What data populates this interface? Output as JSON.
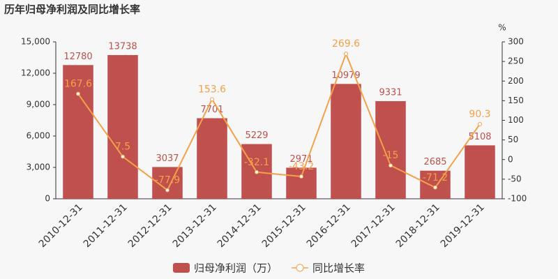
{
  "chart_data": {
    "type": "bar",
    "title": "历年归母净利润及同比增长率",
    "categories": [
      "2010-12-31",
      "2011-12-31",
      "2012-12-31",
      "2013-12-31",
      "2014-12-31",
      "2015-12-31",
      "2016-12-31",
      "2017-12-31",
      "2018-12-31",
      "2019-12-31"
    ],
    "series": [
      {
        "name": "归母净利润（万）",
        "type": "bar",
        "color": "#c0504d",
        "values": [
          12780,
          13738,
          3037,
          7701,
          5229,
          2971,
          10979,
          9331,
          2685,
          5108
        ]
      },
      {
        "name": "同比增长率",
        "type": "line",
        "axis": "y2",
        "color": "#f5a04a",
        "values": [
          167.6,
          7.5,
          -77.9,
          153.6,
          -32.1,
          -43.2,
          269.6,
          -15,
          -71.2,
          90.3
        ]
      }
    ],
    "ylim": [
      0,
      15000
    ],
    "yticks": [
      0,
      {
        "value": 3000,
        "label": "3,000"
      },
      {
        "value": 6000,
        "label": "6,000"
      },
      {
        "value": 9000,
        "label": "9,000"
      },
      {
        "value": 12000,
        "label": "12,000"
      },
      {
        "value": 15000,
        "label": "15,000"
      }
    ],
    "y2label": "%",
    "y2lim": [
      -100,
      300
    ],
    "y2ticks": [
      -100,
      -50,
      0,
      50,
      100,
      150,
      200,
      250,
      300
    ]
  }
}
